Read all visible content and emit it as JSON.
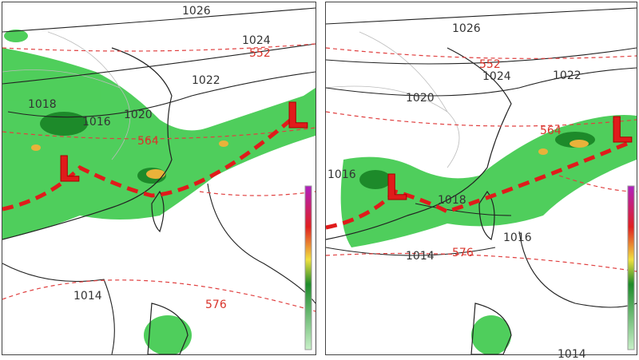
{
  "left_panel": {
    "labels": [
      "1026",
      "1024",
      "552",
      "1022",
      "1018",
      "1020",
      "1016",
      "564",
      "L",
      "L",
      "1014",
      "576"
    ]
  },
  "right_panel": {
    "labels": [
      "1026",
      "552",
      "1024",
      "1022",
      "1020",
      "564",
      "1016",
      "L",
      "L",
      "1018",
      "1016",
      "1014",
      "576",
      "1014"
    ]
  }
}
